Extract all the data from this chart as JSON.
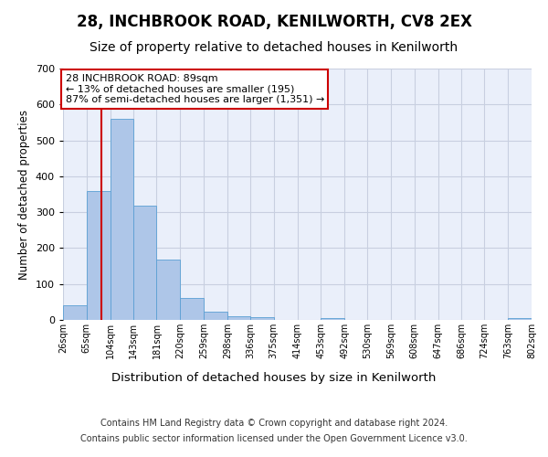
{
  "title1": "28, INCHBROOK ROAD, KENILWORTH, CV8 2EX",
  "title2": "Size of property relative to detached houses in Kenilworth",
  "xlabel": "Distribution of detached houses by size in Kenilworth",
  "ylabel": "Number of detached properties",
  "footer1": "Contains HM Land Registry data © Crown copyright and database right 2024.",
  "footer2": "Contains public sector information licensed under the Open Government Licence v3.0.",
  "bin_edges": [
    26,
    65,
    104,
    143,
    181,
    220,
    259,
    298,
    336,
    375,
    414,
    453,
    492,
    530,
    569,
    608,
    647,
    686,
    724,
    763,
    802
  ],
  "bar_heights": [
    40,
    358,
    561,
    317,
    168,
    60,
    23,
    11,
    8,
    0,
    0,
    5,
    0,
    0,
    0,
    0,
    0,
    0,
    0,
    5
  ],
  "bar_color": "#aec6e8",
  "bar_edge_color": "#5a9fd4",
  "vline_x": 89,
  "vline_color": "#cc0000",
  "annotation_line1": "28 INCHBROOK ROAD: 89sqm",
  "annotation_line2": "← 13% of detached houses are smaller (195)",
  "annotation_line3": "87% of semi-detached houses are larger (1,351) →",
  "annotation_box_color": "#ffffff",
  "annotation_box_edge": "#cc0000",
  "ylim": [
    0,
    700
  ],
  "yticks": [
    0,
    100,
    200,
    300,
    400,
    500,
    600,
    700
  ],
  "grid_color": "#c8cfe0",
  "bg_color": "#eaeffa",
  "title1_fontsize": 12,
  "title2_fontsize": 10,
  "xlabel_fontsize": 9.5,
  "ylabel_fontsize": 8.5,
  "tick_fontsize": 7,
  "ytick_fontsize": 8,
  "footer_fontsize": 7,
  "annot_fontsize": 8
}
